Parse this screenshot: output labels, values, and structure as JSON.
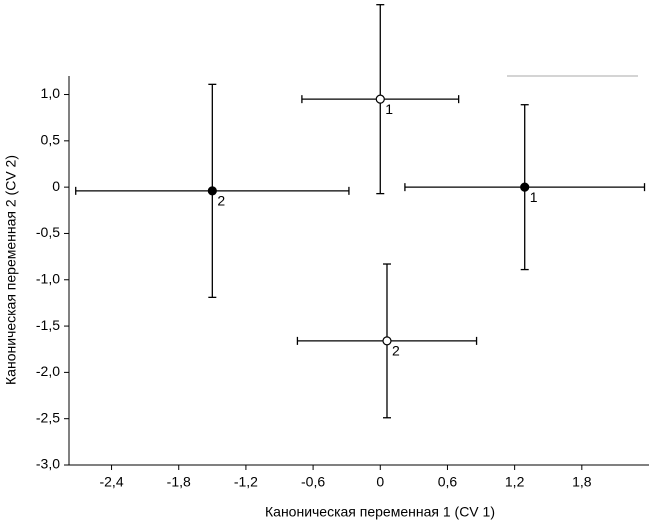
{
  "chart_data": {
    "type": "scatter",
    "x_label": "Каноническая переменная 1 (CV 1)",
    "y_label": "Каноническая переменная 2 (CV 2)",
    "xlim": [
      -2.78,
      2.4
    ],
    "ylim": [
      -3.0,
      1.2
    ],
    "xticks": [
      {
        "value": -2.4,
        "label": "-2,4"
      },
      {
        "value": -1.8,
        "label": "-1,8"
      },
      {
        "value": -1.2,
        "label": "-1,2"
      },
      {
        "value": -0.6,
        "label": "-0,6"
      },
      0,
      {
        "value": 0.6,
        "label": "0,6"
      },
      {
        "value": 1.2,
        "label": "1,2"
      },
      {
        "value": 1.8,
        "label": "1,8"
      }
    ],
    "yticks": [
      {
        "value": 1.0,
        "label": "1,0"
      },
      {
        "value": 0.5,
        "label": "0,5"
      },
      0,
      {
        "value": -0.5,
        "label": "-0,5"
      },
      {
        "value": -1.0,
        "label": "-1,0"
      },
      {
        "value": -1.5,
        "label": "-1,5"
      },
      {
        "value": -2.0,
        "label": "-2,0"
      },
      {
        "value": -2.5,
        "label": "-2,5"
      },
      {
        "value": -3.0,
        "label": "-3,0"
      }
    ],
    "series": [
      {
        "marker": "open",
        "color": "#000000",
        "x": [
          0.0,
          0.06
        ],
        "values": [
          0.95,
          -1.66
        ],
        "xerr": [
          0.7,
          0.8
        ],
        "yerr": [
          1.02,
          0.83
        ],
        "point_labels": [
          "1",
          "2"
        ]
      },
      {
        "marker": "filled",
        "color": "#000000",
        "x": [
          1.29,
          -1.5
        ],
        "values": [
          0.0,
          -0.04
        ],
        "xerr": [
          1.07,
          1.22
        ],
        "yerr": [
          0.89,
          1.15
        ],
        "point_labels": [
          "1",
          "2"
        ]
      }
    ]
  }
}
